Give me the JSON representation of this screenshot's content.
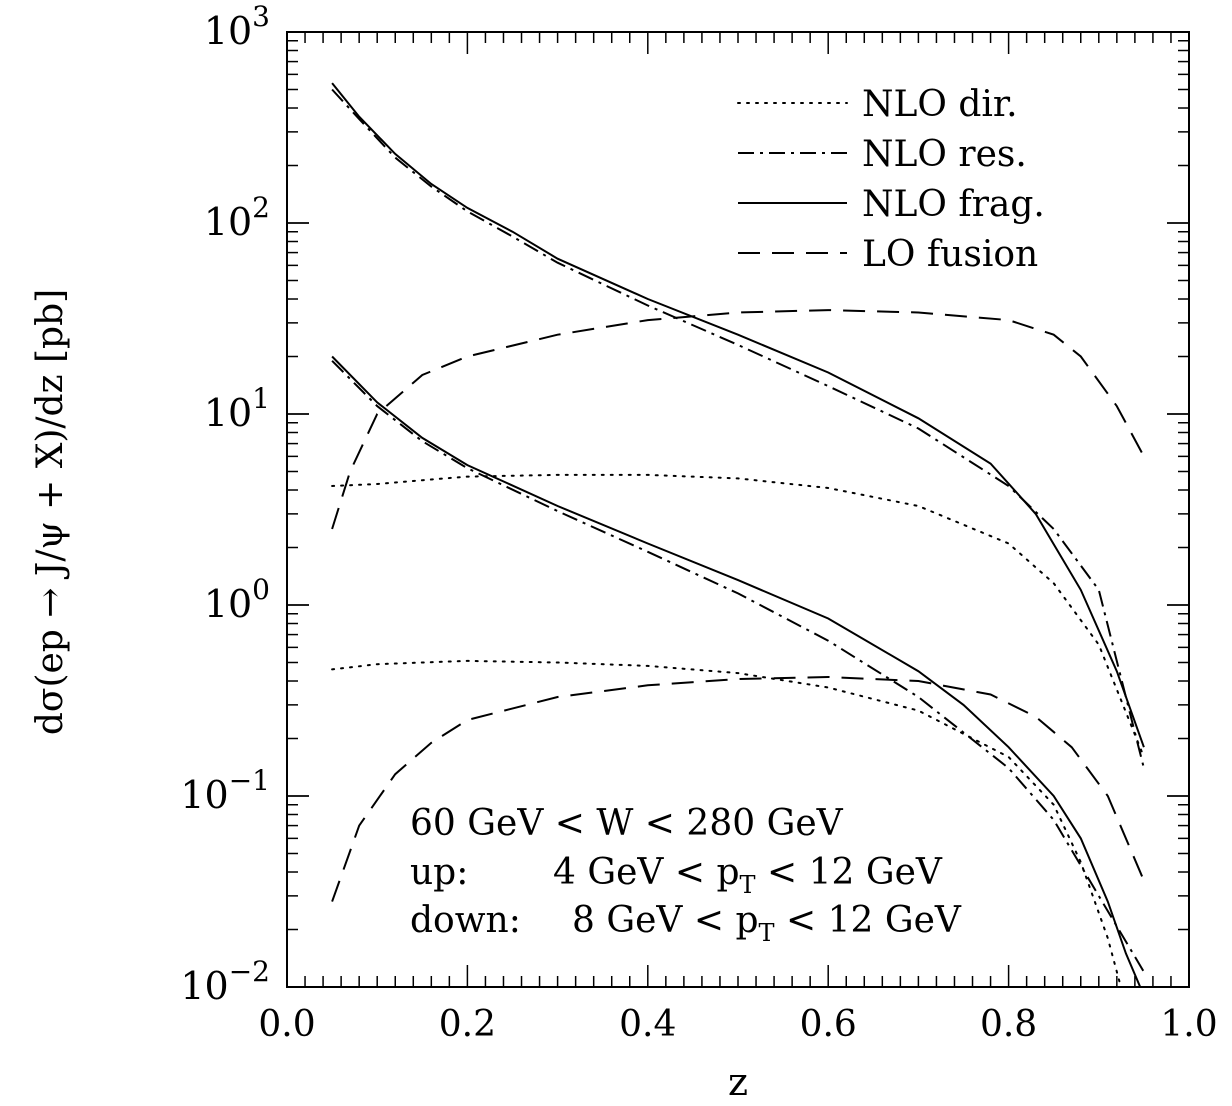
{
  "chart_data": {
    "type": "line",
    "xlabel": "z",
    "ylabel": "dσ(ep → J/ψ + X)/dz [pb]",
    "x_axis": {
      "range": [
        0.0,
        1.0
      ],
      "scale": "linear",
      "tick_labels": [
        "0.0",
        "0.2",
        "0.4",
        "0.6",
        "0.8",
        "1.0"
      ]
    },
    "y_axis": {
      "range": [
        0.01,
        1000
      ],
      "scale": "log",
      "tick_labels": [
        {
          "base": "10",
          "exp": "−2"
        },
        {
          "base": "10",
          "exp": "−1"
        },
        {
          "base": "10",
          "exp": "0"
        },
        {
          "base": "10",
          "exp": "1"
        },
        {
          "base": "10",
          "exp": "2"
        },
        {
          "base": "10",
          "exp": "3"
        }
      ]
    },
    "grid": false,
    "legend_position": "top-right",
    "legend": [
      {
        "label": "NLO dir.",
        "style": "dotted"
      },
      {
        "label": "NLO res.",
        "style": "dashdot"
      },
      {
        "label": "NLO frag.",
        "style": "solid"
      },
      {
        "label": "LO fusion",
        "style": "dashed"
      }
    ],
    "annotation": {
      "line1": "60 GeV < W < 280 GeV",
      "line2_prefix": "up:",
      "line2_range": "4 GeV < p",
      "line2_sub": "T",
      "line2_end": " < 12 GeV",
      "line3_prefix": "down:",
      "line3_range": "8 GeV < p",
      "line3_sub": "T",
      "line3_end": " < 12 GeV"
    },
    "series": [
      {
        "group": "up",
        "style": "dotted",
        "points": [
          [
            0.05,
            4.2
          ],
          [
            0.1,
            4.3
          ],
          [
            0.15,
            4.5
          ],
          [
            0.2,
            4.7
          ],
          [
            0.3,
            4.8
          ],
          [
            0.4,
            4.8
          ],
          [
            0.5,
            4.6
          ],
          [
            0.6,
            4.1
          ],
          [
            0.7,
            3.3
          ],
          [
            0.8,
            2.1
          ],
          [
            0.85,
            1.3
          ],
          [
            0.9,
            0.62
          ],
          [
            0.95,
            0.16
          ]
        ]
      },
      {
        "group": "up",
        "style": "dashdot",
        "points": [
          [
            0.05,
            500
          ],
          [
            0.08,
            350
          ],
          [
            0.12,
            220
          ],
          [
            0.16,
            155
          ],
          [
            0.2,
            115
          ],
          [
            0.25,
            85
          ],
          [
            0.3,
            62
          ],
          [
            0.4,
            37
          ],
          [
            0.5,
            23
          ],
          [
            0.6,
            14
          ],
          [
            0.7,
            8.4
          ],
          [
            0.8,
            4.2
          ],
          [
            0.85,
            2.5
          ],
          [
            0.9,
            1.2
          ],
          [
            0.95,
            0.14
          ]
        ]
      },
      {
        "group": "up",
        "style": "solid",
        "points": [
          [
            0.05,
            540
          ],
          [
            0.08,
            360
          ],
          [
            0.12,
            230
          ],
          [
            0.16,
            160
          ],
          [
            0.2,
            120
          ],
          [
            0.25,
            90
          ],
          [
            0.3,
            65
          ],
          [
            0.4,
            40
          ],
          [
            0.5,
            26
          ],
          [
            0.6,
            16.5
          ],
          [
            0.7,
            9.5
          ],
          [
            0.78,
            5.5
          ],
          [
            0.83,
            3.0
          ],
          [
            0.88,
            1.2
          ],
          [
            0.92,
            0.45
          ],
          [
            0.95,
            0.18
          ]
        ]
      },
      {
        "group": "up",
        "style": "dashed",
        "points": [
          [
            0.05,
            2.5
          ],
          [
            0.07,
            5.0
          ],
          [
            0.1,
            10
          ],
          [
            0.15,
            16
          ],
          [
            0.2,
            20
          ],
          [
            0.3,
            26
          ],
          [
            0.4,
            31
          ],
          [
            0.5,
            34
          ],
          [
            0.6,
            35
          ],
          [
            0.7,
            34
          ],
          [
            0.8,
            31
          ],
          [
            0.85,
            26
          ],
          [
            0.88,
            20
          ],
          [
            0.92,
            11
          ],
          [
            0.95,
            6.0
          ]
        ]
      },
      {
        "group": "down",
        "style": "dotted",
        "points": [
          [
            0.05,
            0.46
          ],
          [
            0.1,
            0.49
          ],
          [
            0.15,
            0.5
          ],
          [
            0.2,
            0.51
          ],
          [
            0.3,
            0.5
          ],
          [
            0.4,
            0.48
          ],
          [
            0.5,
            0.44
          ],
          [
            0.6,
            0.37
          ],
          [
            0.7,
            0.28
          ],
          [
            0.8,
            0.16
          ],
          [
            0.85,
            0.09
          ],
          [
            0.88,
            0.045
          ],
          [
            0.91,
            0.018
          ],
          [
            0.93,
            0.008
          ]
        ]
      },
      {
        "group": "down",
        "style": "dashdot",
        "points": [
          [
            0.05,
            19
          ],
          [
            0.1,
            11
          ],
          [
            0.15,
            7.2
          ],
          [
            0.2,
            5.2
          ],
          [
            0.3,
            3.1
          ],
          [
            0.4,
            1.9
          ],
          [
            0.5,
            1.15
          ],
          [
            0.6,
            0.65
          ],
          [
            0.7,
            0.33
          ],
          [
            0.8,
            0.14
          ],
          [
            0.85,
            0.075
          ],
          [
            0.9,
            0.03
          ],
          [
            0.95,
            0.012
          ]
        ]
      },
      {
        "group": "down",
        "style": "solid",
        "points": [
          [
            0.05,
            20
          ],
          [
            0.1,
            11.5
          ],
          [
            0.15,
            7.5
          ],
          [
            0.2,
            5.4
          ],
          [
            0.3,
            3.3
          ],
          [
            0.4,
            2.1
          ],
          [
            0.5,
            1.35
          ],
          [
            0.6,
            0.85
          ],
          [
            0.7,
            0.45
          ],
          [
            0.75,
            0.3
          ],
          [
            0.8,
            0.18
          ],
          [
            0.85,
            0.1
          ],
          [
            0.88,
            0.06
          ],
          [
            0.91,
            0.028
          ],
          [
            0.93,
            0.015
          ],
          [
            0.95,
            0.009
          ]
        ]
      },
      {
        "group": "down",
        "style": "dashed",
        "points": [
          [
            0.05,
            0.028
          ],
          [
            0.08,
            0.07
          ],
          [
            0.12,
            0.13
          ],
          [
            0.16,
            0.19
          ],
          [
            0.2,
            0.25
          ],
          [
            0.3,
            0.33
          ],
          [
            0.4,
            0.38
          ],
          [
            0.5,
            0.41
          ],
          [
            0.6,
            0.42
          ],
          [
            0.7,
            0.4
          ],
          [
            0.78,
            0.34
          ],
          [
            0.83,
            0.26
          ],
          [
            0.87,
            0.18
          ],
          [
            0.91,
            0.1
          ],
          [
            0.95,
            0.036
          ]
        ]
      }
    ]
  }
}
